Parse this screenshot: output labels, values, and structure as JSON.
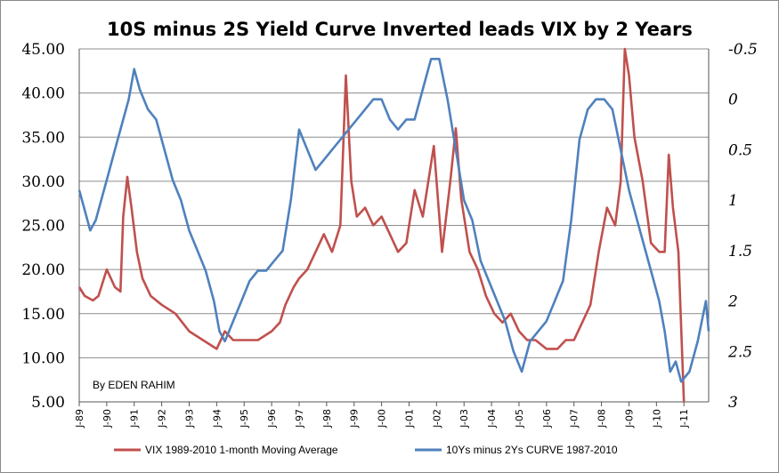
{
  "chart_data": {
    "type": "line",
    "title": "10S minus 2S Yield Curve Inverted leads VIX by 2 Years",
    "annotation": "By EDEN RAHIM",
    "left_axis": {
      "ylim": [
        5,
        45
      ],
      "ticks": [
        "45.00",
        "40.00",
        "35.00",
        "30.00",
        "25.00",
        "20.00",
        "15.00",
        "10.00",
        "5.00"
      ],
      "tick_values": [
        45,
        40,
        35,
        30,
        25,
        20,
        15,
        10,
        5
      ]
    },
    "right_axis": {
      "ylim": [
        -0.5,
        3
      ],
      "inverted": true,
      "ticks": [
        "-0.5",
        "0",
        "0.5",
        "1",
        "1.5",
        "2",
        "2.5",
        "3"
      ],
      "tick_values": [
        -0.5,
        0,
        0.5,
        1,
        1.5,
        2,
        2.5,
        3
      ]
    },
    "x_axis": {
      "range": [
        1989.0,
        2011.9
      ],
      "ticks": [
        "J-89",
        "J-90",
        "J-91",
        "J-92",
        "J-93",
        "J-94",
        "J-95",
        "J-96",
        "J-97",
        "J-98",
        "J-99",
        "J-00",
        "J-01",
        "J-02",
        "J-03",
        "J-04",
        "J-05",
        "J-06",
        "J-07",
        "J-08",
        "J-09",
        "J-10",
        "J-11"
      ],
      "tick_values": [
        1989,
        1990,
        1991,
        1992,
        1993,
        1994,
        1995,
        1996,
        1997,
        1998,
        1999,
        2000,
        2001,
        2002,
        2003,
        2004,
        2005,
        2006,
        2007,
        2008,
        2009,
        2010,
        2011
      ]
    },
    "series": [
      {
        "name": "VIX 1989-2010  1-month Moving Average",
        "axis": "left",
        "color": "#c0504d",
        "x": [
          1989.0,
          1989.2,
          1989.5,
          1989.7,
          1990.0,
          1990.3,
          1990.5,
          1990.6,
          1990.75,
          1990.9,
          1991.1,
          1991.3,
          1991.6,
          1992.0,
          1992.5,
          1993.0,
          1993.5,
          1994.0,
          1994.3,
          1994.6,
          1995.0,
          1995.5,
          1996.0,
          1996.3,
          1996.5,
          1996.8,
          1997.0,
          1997.3,
          1997.6,
          1997.9,
          1998.2,
          1998.5,
          1998.7,
          1998.9,
          1999.1,
          1999.4,
          1999.7,
          2000.0,
          2000.3,
          2000.6,
          2000.9,
          2001.2,
          2001.5,
          2001.7,
          2001.9,
          2002.2,
          2002.5,
          2002.7,
          2002.9,
          2003.2,
          2003.5,
          2003.8,
          2004.1,
          2004.4,
          2004.7,
          2005.0,
          2005.3,
          2005.6,
          2006.0,
          2006.4,
          2006.7,
          2007.0,
          2007.3,
          2007.6,
          2007.9,
          2008.2,
          2008.5,
          2008.7,
          2008.85,
          2009.0,
          2009.2,
          2009.5,
          2009.8,
          2010.1,
          2010.3,
          2010.45,
          2010.6,
          2010.8,
          2011.0
        ],
        "values": [
          18,
          17,
          16.5,
          17,
          20,
          18,
          17.5,
          26,
          30.5,
          27,
          22,
          19,
          17,
          16,
          15,
          13,
          12,
          11,
          13,
          12,
          12,
          12,
          13,
          14,
          16,
          18,
          19,
          20,
          22,
          24,
          22,
          25,
          42,
          30,
          26,
          27,
          25,
          26,
          24,
          22,
          23,
          29,
          26,
          30,
          34,
          22,
          30,
          36,
          28,
          22,
          20,
          17,
          15,
          14,
          15,
          13,
          12,
          12,
          11,
          11,
          12,
          12,
          14,
          16,
          22,
          27,
          25,
          30,
          45,
          42,
          35,
          30,
          23,
          22,
          22,
          33,
          27,
          22,
          5
        ]
      },
      {
        "name": "10Ys minus 2Ys CURVE 1987-2010",
        "axis": "right",
        "color": "#4f81bd",
        "x": [
          1989.0,
          1989.2,
          1989.4,
          1989.6,
          1989.8,
          1990.0,
          1990.3,
          1990.6,
          1990.8,
          1991.0,
          1991.2,
          1991.5,
          1991.8,
          1992.1,
          1992.4,
          1992.7,
          1993.0,
          1993.3,
          1993.6,
          1993.9,
          1994.1,
          1994.3,
          1994.6,
          1994.9,
          1995.2,
          1995.5,
          1995.8,
          1996.1,
          1996.4,
          1996.7,
          1997.0,
          1997.3,
          1997.6,
          1997.9,
          1998.2,
          1998.5,
          1998.8,
          1999.1,
          1999.4,
          1999.7,
          2000.0,
          2000.3,
          2000.6,
          2000.9,
          2001.2,
          2001.5,
          2001.8,
          2002.1,
          2002.4,
          2002.7,
          2003.0,
          2003.3,
          2003.6,
          2003.9,
          2004.2,
          2004.5,
          2004.8,
          2005.1,
          2005.4,
          2005.7,
          2006.0,
          2006.3,
          2006.6,
          2006.9,
          2007.2,
          2007.5,
          2007.8,
          2008.1,
          2008.4,
          2008.7,
          2009.0,
          2009.3,
          2009.6,
          2009.9,
          2010.1,
          2010.3,
          2010.5,
          2010.7,
          2010.9,
          2011.2,
          2011.5,
          2011.8,
          2011.9
        ],
        "values": [
          0.9,
          1.1,
          1.3,
          1.2,
          1.0,
          0.8,
          0.5,
          0.2,
          0.0,
          -0.3,
          -0.1,
          0.1,
          0.2,
          0.5,
          0.8,
          1.0,
          1.3,
          1.5,
          1.7,
          2.0,
          2.3,
          2.4,
          2.2,
          2.0,
          1.8,
          1.7,
          1.7,
          1.6,
          1.5,
          1.0,
          0.3,
          0.5,
          0.7,
          0.6,
          0.5,
          0.4,
          0.3,
          0.2,
          0.1,
          0.0,
          0.0,
          0.2,
          0.3,
          0.2,
          0.2,
          -0.1,
          -0.4,
          -0.4,
          0.0,
          0.5,
          1.0,
          1.2,
          1.6,
          1.8,
          2.0,
          2.2,
          2.5,
          2.7,
          2.4,
          2.3,
          2.2,
          2.0,
          1.8,
          1.2,
          0.4,
          0.1,
          0.0,
          0.0,
          0.1,
          0.5,
          0.9,
          1.2,
          1.5,
          1.8,
          2.0,
          2.3,
          2.7,
          2.6,
          2.8,
          2.7,
          2.4,
          2.0,
          2.3
        ]
      }
    ]
  }
}
